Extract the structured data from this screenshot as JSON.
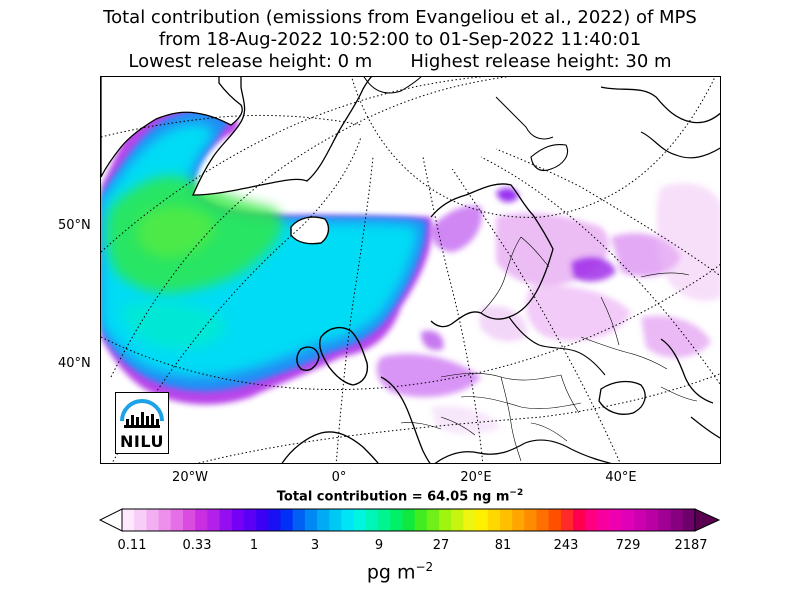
{
  "title": {
    "line1": "Total contribution (emissions from Evangeliou et al., 2022) of MPS",
    "line2": "from 18-Aug-2022 10:52:00 to 01-Sep-2022 11:40:01",
    "line3_left": "Lowest release height: 0 m",
    "line3_right": "Highest release height: 30 m"
  },
  "map": {
    "lat_labels": [
      "50°N",
      "40°N"
    ],
    "lon_labels": [
      "20°W",
      "0°",
      "20°E",
      "40°E"
    ],
    "graticule": "dotted"
  },
  "total": {
    "prefix": "Total contribution = 64.05 ng m",
    "exponent": "−2"
  },
  "colorbar": {
    "tick_labels": [
      "0.11",
      "0.33",
      "1",
      "3",
      "9",
      "27",
      "81",
      "243",
      "729",
      "2187"
    ],
    "unit_prefix": "pg m",
    "unit_exponent": "−2",
    "colors": [
      "#fde8fd",
      "#f8cdf8",
      "#f2b0f2",
      "#ec90ec",
      "#e46fe6",
      "#d84de0",
      "#c92ee0",
      "#b320e8",
      "#9410f0",
      "#7600f5",
      "#5a00f5",
      "#3c00f5",
      "#1a10f5",
      "#0030f5",
      "#0060f5",
      "#0088f5",
      "#00aaf5",
      "#00c8f5",
      "#00e5f5",
      "#00f5e0",
      "#00f5b8",
      "#00f590",
      "#00f068",
      "#10e840",
      "#40ee20",
      "#70f018",
      "#a0f510",
      "#c8f510",
      "#eef510",
      "#fff000",
      "#ffd800",
      "#ffc000",
      "#ffa600",
      "#ff8c00",
      "#ff7000",
      "#ff5000",
      "#ff2a2a",
      "#ff0050",
      "#ff0080",
      "#f800a0",
      "#ee00b0",
      "#e000b8",
      "#cc00b0",
      "#b800a4",
      "#a00094",
      "#860080",
      "#6e006a"
    ]
  },
  "logo": {
    "text": "NILU",
    "icon": "nilu-logo-icon"
  }
}
